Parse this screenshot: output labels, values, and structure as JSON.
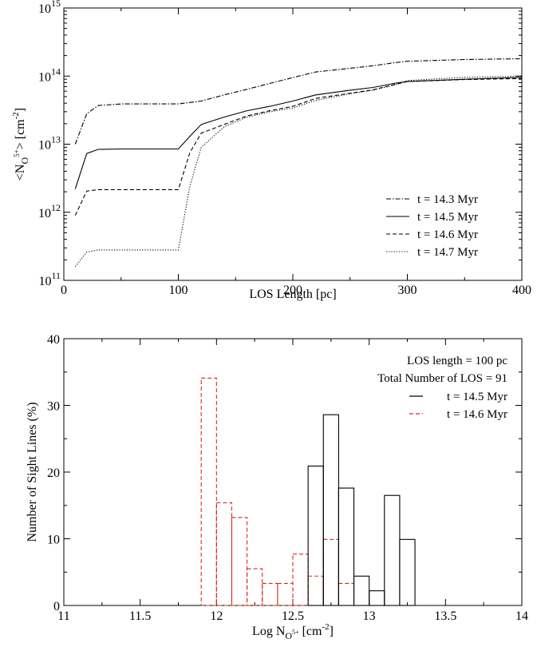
{
  "chart_data": [
    {
      "type": "line",
      "xlabel": "LOS Length [pc]",
      "ylabel": {
        "lt": "<N",
        "sub": "O",
        "sup": "5+",
        "rest": "> [cm",
        "unitsup": "-2",
        "end": "]"
      },
      "xlim": [
        0,
        400
      ],
      "ylim": [
        100000000000.0,
        1000000000000000.0
      ],
      "yscale": "log",
      "x_ticks": [
        "0",
        "100",
        "200",
        "300",
        "400"
      ],
      "y_ticks": [
        {
          "base": "10",
          "exp": "11"
        },
        {
          "base": "10",
          "exp": "12"
        },
        {
          "base": "10",
          "exp": "13"
        },
        {
          "base": "10",
          "exp": "14"
        },
        {
          "base": "10",
          "exp": "15"
        }
      ],
      "legend_position": "bottom-right",
      "series": [
        {
          "name": "t = 14.3 Myr",
          "color": "#000000",
          "dash": "dashdot",
          "x": [
            10,
            20,
            30,
            50,
            100,
            120,
            140,
            160,
            180,
            200,
            220,
            250,
            270,
            290,
            300,
            350,
            400
          ],
          "y": [
            10000000000000.0,
            28000000000000.0,
            37000000000000.0,
            39000000000000.0,
            39000000000000.0,
            43000000000000.0,
            53000000000000.0,
            64000000000000.0,
            78000000000000.0,
            95000000000000.0,
            115000000000000.0,
            130000000000000.0,
            142000000000000.0,
            158000000000000.0,
            165000000000000.0,
            175000000000000.0,
            180000000000000.0
          ]
        },
        {
          "name": "t = 14.5 Myr",
          "color": "#000000",
          "dash": "solid",
          "x": [
            10,
            20,
            30,
            50,
            100,
            110,
            120,
            140,
            160,
            180,
            200,
            220,
            250,
            270,
            290,
            300,
            350,
            400
          ],
          "y": [
            2200000000000.0,
            7300000000000.0,
            8400000000000.0,
            8500000000000.0,
            8500000000000.0,
            13000000000000.0,
            19500000000000.0,
            25000000000000.0,
            31000000000000.0,
            36000000000000.0,
            43000000000000.0,
            53000000000000.0,
            62000000000000.0,
            68000000000000.0,
            79000000000000.0,
            83000000000000.0,
            90000000000000.0,
            96000000000000.0
          ]
        },
        {
          "name": "t = 14.6 Myr",
          "color": "#000000",
          "dash": "dashed",
          "x": [
            10,
            20,
            30,
            50,
            100,
            110,
            120,
            140,
            160,
            180,
            200,
            220,
            250,
            270,
            290,
            300,
            350,
            400
          ],
          "y": [
            900000000000.0,
            2050000000000.0,
            2150000000000.0,
            2150000000000.0,
            2150000000000.0,
            7500000000000.0,
            14500000000000.0,
            19500000000000.0,
            26000000000000.0,
            31000000000000.0,
            36000000000000.0,
            47000000000000.0,
            56000000000000.0,
            63000000000000.0,
            76000000000000.0,
            83000000000000.0,
            89000000000000.0,
            92000000000000.0
          ]
        },
        {
          "name": "t = 14.7 Myr",
          "color": "#000000",
          "dash": "dotted",
          "x": [
            10,
            20,
            30,
            50,
            100,
            110,
            120,
            140,
            160,
            180,
            200,
            220,
            250,
            270,
            290,
            300,
            350,
            400
          ],
          "y": [
            160000000000.0,
            260000000000.0,
            280000000000.0,
            280000000000.0,
            280000000000.0,
            2400000000000.0,
            9000000000000.0,
            18000000000000.0,
            25000000000000.0,
            30000000000000.0,
            34000000000000.0,
            44000000000000.0,
            55000000000000.0,
            62000000000000.0,
            75000000000000.0,
            86000000000000.0,
            96000000000000.0,
            100000000000000.0
          ]
        }
      ]
    },
    {
      "type": "histogram",
      "xlabel": {
        "pre": "Log N",
        "sub": "O",
        "subsup": "5+",
        "rest": " [cm",
        "unitsup": "-2",
        "end": "]"
      },
      "ylabel": "Number of Sight Lines (%)",
      "xlim": [
        11,
        14
      ],
      "ylim": [
        0,
        40
      ],
      "x_ticks": [
        "11",
        "11.5",
        "12",
        "12.5",
        "13",
        "13.5",
        "14"
      ],
      "y_ticks": [
        "0",
        "10",
        "20",
        "30",
        "40"
      ],
      "bin_width": 0.1,
      "legend_position": "top-right",
      "annotations": [
        "LOS length = 100 pc",
        "Total Number of LOS = 91"
      ],
      "series": [
        {
          "name": "t = 14.5 Myr",
          "color": "#000000",
          "dash": "solid",
          "bin_starts": [
            12.6,
            12.7,
            12.8,
            12.9,
            13.0,
            13.1,
            13.2
          ],
          "values": [
            20.9,
            28.6,
            17.6,
            4.4,
            2.2,
            16.5,
            9.9
          ]
        },
        {
          "name": "t = 14.6 Myr",
          "color": "#d62a1e",
          "dash": "dashed",
          "bin_starts": [
            11.9,
            12.0,
            12.1,
            12.2,
            12.3,
            12.4,
            12.5,
            12.6,
            12.7,
            12.8
          ],
          "values": [
            34.1,
            15.4,
            13.2,
            5.5,
            3.3,
            3.3,
            7.7,
            4.4,
            9.9,
            3.3
          ]
        }
      ]
    }
  ]
}
